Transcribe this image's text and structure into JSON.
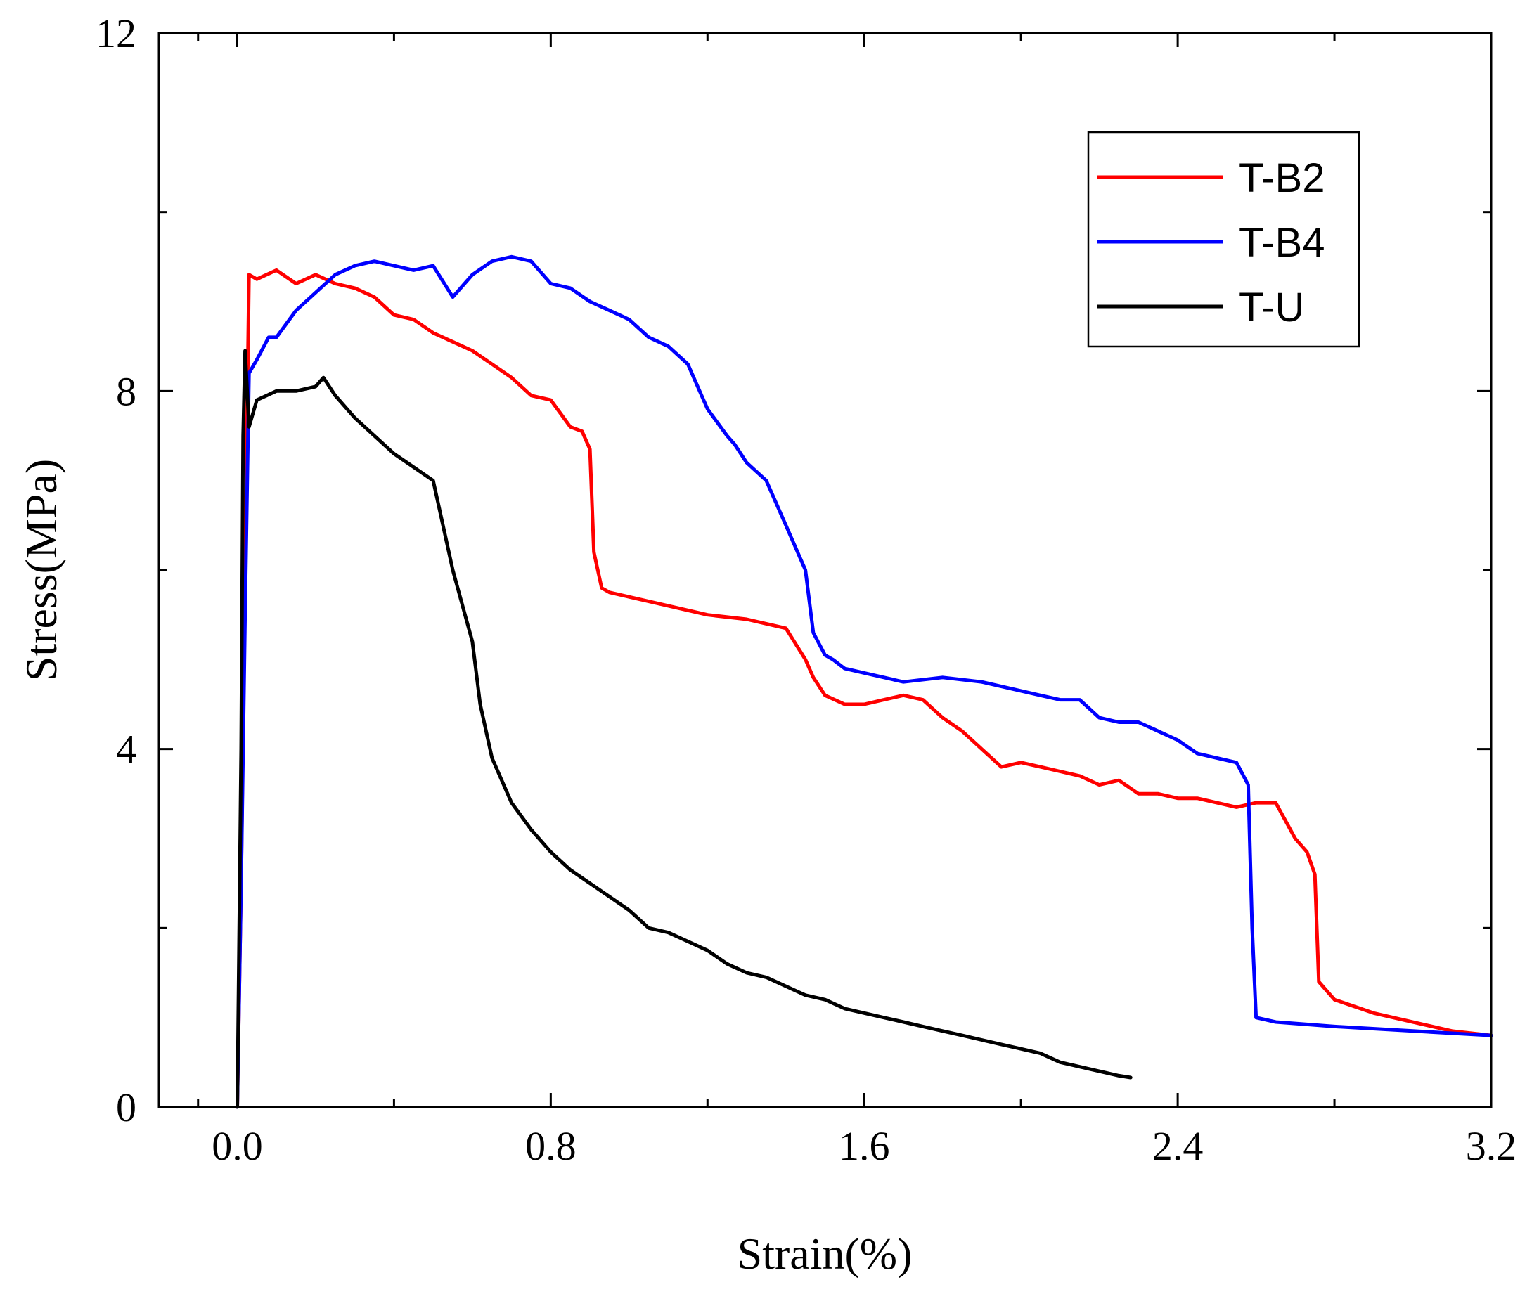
{
  "chart_data": {
    "type": "line",
    "title": "",
    "xlabel": "Strain(%)",
    "ylabel": "Stress(MPa)",
    "xlim": [
      -0.2,
      3.2
    ],
    "ylim": [
      0,
      12
    ],
    "x_ticks": [
      0.0,
      0.8,
      1.6,
      2.4,
      3.2
    ],
    "x_tick_labels": [
      "0.0",
      "0.8",
      "1.6",
      "2.4",
      "3.2"
    ],
    "y_ticks": [
      0,
      4,
      8,
      12
    ],
    "y_tick_labels": [
      "0",
      "4",
      "8",
      "12"
    ],
    "grid": false,
    "legend_position": "top-right",
    "series": [
      {
        "name": "T-B2",
        "color": "#ff0000",
        "x": [
          0.0,
          0.01,
          0.02,
          0.03,
          0.05,
          0.1,
          0.15,
          0.2,
          0.25,
          0.3,
          0.35,
          0.4,
          0.45,
          0.5,
          0.55,
          0.6,
          0.65,
          0.7,
          0.75,
          0.8,
          0.85,
          0.88,
          0.9,
          0.91,
          0.93,
          0.95,
          1.0,
          1.1,
          1.2,
          1.3,
          1.4,
          1.45,
          1.47,
          1.5,
          1.55,
          1.6,
          1.65,
          1.7,
          1.75,
          1.8,
          1.85,
          1.9,
          1.95,
          2.0,
          2.05,
          2.1,
          2.15,
          2.2,
          2.25,
          2.3,
          2.35,
          2.4,
          2.45,
          2.5,
          2.55,
          2.6,
          2.65,
          2.7,
          2.73,
          2.75,
          2.76,
          2.8,
          2.9,
          3.0,
          3.1,
          3.2
        ],
        "y": [
          0.0,
          2.5,
          6.0,
          9.3,
          9.25,
          9.35,
          9.2,
          9.3,
          9.2,
          9.15,
          9.05,
          8.85,
          8.8,
          8.65,
          8.55,
          8.45,
          8.3,
          8.15,
          7.95,
          7.9,
          7.6,
          7.55,
          7.35,
          6.2,
          5.8,
          5.75,
          5.7,
          5.6,
          5.5,
          5.45,
          5.35,
          5.0,
          4.8,
          4.6,
          4.5,
          4.5,
          4.55,
          4.6,
          4.55,
          4.35,
          4.2,
          4.0,
          3.8,
          3.85,
          3.8,
          3.75,
          3.7,
          3.6,
          3.65,
          3.5,
          3.5,
          3.45,
          3.45,
          3.4,
          3.35,
          3.4,
          3.4,
          3.0,
          2.85,
          2.6,
          1.4,
          1.2,
          1.05,
          0.95,
          0.85,
          0.8
        ]
      },
      {
        "name": "T-B4",
        "color": "#0000ff",
        "x": [
          0.0,
          0.01,
          0.02,
          0.03,
          0.05,
          0.08,
          0.1,
          0.15,
          0.2,
          0.25,
          0.3,
          0.35,
          0.4,
          0.45,
          0.5,
          0.55,
          0.6,
          0.65,
          0.7,
          0.75,
          0.8,
          0.85,
          0.9,
          0.95,
          1.0,
          1.05,
          1.1,
          1.15,
          1.2,
          1.25,
          1.27,
          1.3,
          1.35,
          1.4,
          1.45,
          1.47,
          1.5,
          1.52,
          1.55,
          1.6,
          1.7,
          1.8,
          1.9,
          2.0,
          2.05,
          2.1,
          2.15,
          2.2,
          2.25,
          2.3,
          2.35,
          2.4,
          2.45,
          2.5,
          2.55,
          2.58,
          2.59,
          2.6,
          2.65,
          2.8,
          3.0,
          3.2
        ],
        "y": [
          0.0,
          2.5,
          5.5,
          8.2,
          8.35,
          8.6,
          8.6,
          8.9,
          9.1,
          9.3,
          9.4,
          9.45,
          9.4,
          9.35,
          9.4,
          9.05,
          9.3,
          9.45,
          9.5,
          9.45,
          9.2,
          9.15,
          9.0,
          8.9,
          8.8,
          8.6,
          8.5,
          8.3,
          7.8,
          7.5,
          7.4,
          7.2,
          7.0,
          6.5,
          6.0,
          5.3,
          5.05,
          5.0,
          4.9,
          4.85,
          4.75,
          4.8,
          4.75,
          4.65,
          4.6,
          4.55,
          4.55,
          4.35,
          4.3,
          4.3,
          4.2,
          4.1,
          3.95,
          3.9,
          3.85,
          3.6,
          2.0,
          1.0,
          0.95,
          0.9,
          0.85,
          0.8
        ]
      },
      {
        "name": "T-U",
        "color": "#000000",
        "x": [
          0.0,
          0.01,
          0.015,
          0.02,
          0.03,
          0.05,
          0.1,
          0.15,
          0.2,
          0.22,
          0.25,
          0.3,
          0.35,
          0.4,
          0.45,
          0.5,
          0.52,
          0.55,
          0.6,
          0.62,
          0.65,
          0.7,
          0.75,
          0.8,
          0.85,
          0.9,
          0.95,
          1.0,
          1.05,
          1.1,
          1.15,
          1.2,
          1.25,
          1.3,
          1.35,
          1.4,
          1.45,
          1.5,
          1.55,
          1.6,
          1.65,
          1.7,
          1.75,
          1.8,
          1.85,
          1.9,
          1.95,
          2.0,
          2.05,
          2.1,
          2.15,
          2.2,
          2.25,
          2.28
        ],
        "y": [
          0.0,
          4.0,
          7.5,
          8.45,
          7.6,
          7.9,
          8.0,
          8.0,
          8.05,
          8.15,
          7.95,
          7.7,
          7.5,
          7.3,
          7.15,
          7.0,
          6.6,
          6.0,
          5.2,
          4.5,
          3.9,
          3.4,
          3.1,
          2.85,
          2.65,
          2.5,
          2.35,
          2.2,
          2.0,
          1.95,
          1.85,
          1.75,
          1.6,
          1.5,
          1.45,
          1.35,
          1.25,
          1.2,
          1.1,
          1.05,
          1.0,
          0.95,
          0.9,
          0.85,
          0.8,
          0.75,
          0.7,
          0.65,
          0.6,
          0.5,
          0.45,
          0.4,
          0.35,
          0.33
        ]
      }
    ]
  }
}
